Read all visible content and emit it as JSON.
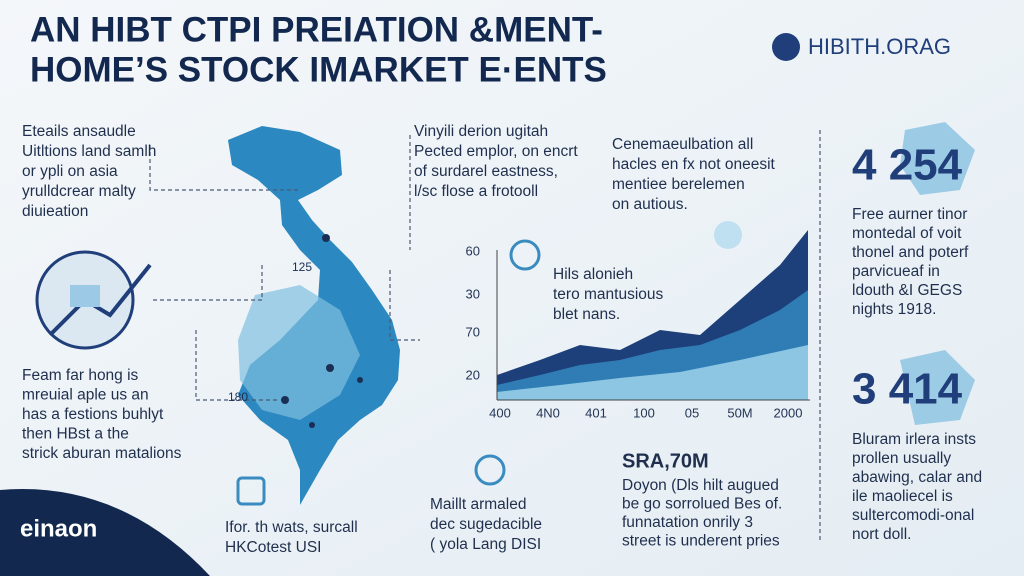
{
  "header": {
    "title_lines": [
      "AN HIBT CTPI PREIATION &MENT-",
      "HOME’S STOCK  IMARKET E·ENTS"
    ],
    "logo": "HIBITH.ORAG"
  },
  "left_top": [
    "Eteails ansaudle",
    "Uitltions land samlh",
    "or ypli on asia",
    "yrulldcrear malty",
    "diuieation"
  ],
  "left_bottom": [
    "Feam far hong is",
    "mreuial aple us an",
    "has a festions buhlyt",
    "then HBst a the",
    "strick aburan matalions"
  ],
  "map_labels": [
    "125",
    "180"
  ],
  "center_top": [
    "Vinyili derion ugitah",
    "Pected emplor, on encrt",
    "of surdarel eastness,",
    "l/sc flose a frotooll"
  ],
  "right_top": [
    "Cenemaeulbation all",
    "hacles en fx not oneesit",
    "mentiee berelemen",
    "on autious."
  ],
  "chart": {
    "callout": [
      "Hils alonieh",
      "tero mantusious",
      "blet nans."
    ],
    "y_labels": [
      "60",
      "30",
      "70",
      "20"
    ],
    "x_labels": [
      "400",
      "4N0",
      "401",
      "100",
      "05",
      "50M",
      "2000"
    ]
  },
  "bottom_left": [
    "Ifor. th wats, surcall",
    "HKCotest USI"
  ],
  "bottom_center": [
    "Maillt armaled",
    "dec sugedacible",
    "( yola Lang DISI"
  ],
  "bottom_right": {
    "title": "SRA,70M",
    "lines": [
      "Doyon (Dls hilt augued",
      "be go sorrolued Bes of.",
      "funnatation onrily 3",
      "street is underent pries"
    ]
  },
  "stat1": {
    "value": "4 254",
    "lines": [
      "Free aurner tinor",
      "montedal of voit",
      "thonel and poterf",
      "parvicueaf in",
      "ldouth &I GEGS",
      "nights 1918."
    ]
  },
  "stat2": {
    "value": "3 414",
    "lines": [
      "Bluram irlera insts",
      "prollen usually",
      "abawing, calar and",
      "ile maoliecel is",
      "sultercomodi-onal",
      "nort doll."
    ]
  },
  "footer_logo": "einaon"
}
